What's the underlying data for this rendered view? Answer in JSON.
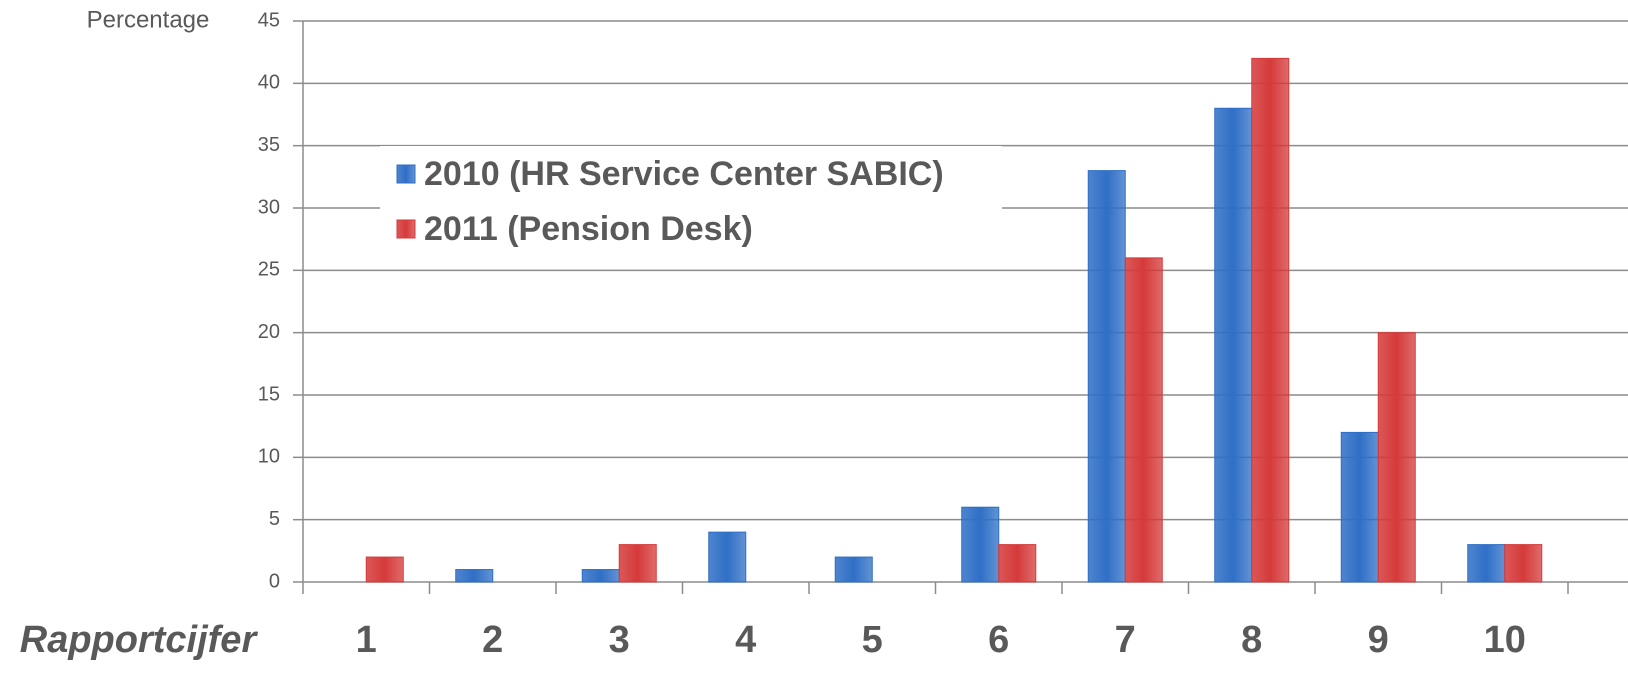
{
  "chart_data": {
    "type": "bar",
    "ylabel": "Percentage",
    "xlabel": "Rapportcijfer",
    "categories": [
      "1",
      "2",
      "3",
      "4",
      "5",
      "6",
      "7",
      "8",
      "9",
      "10"
    ],
    "series": [
      {
        "name": "2010 (HR Service Center SABIC)",
        "color": "#2f6fc6",
        "values": [
          0,
          1,
          1,
          4,
          2,
          6,
          33,
          38,
          12,
          3
        ]
      },
      {
        "name": "2011 (Pension Desk)",
        "color": "#d53a3a",
        "values": [
          2,
          0,
          3,
          0,
          0,
          3,
          26,
          42,
          20,
          3
        ]
      }
    ],
    "ylim": [
      0,
      45
    ],
    "yticks": [
      0,
      5,
      10,
      15,
      20,
      25,
      30,
      35,
      40,
      45
    ],
    "grid": true,
    "legend": "upper left"
  }
}
